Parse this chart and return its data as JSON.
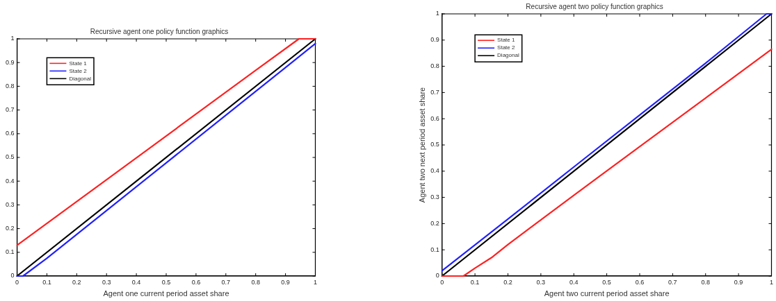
{
  "chart_data": [
    {
      "type": "line",
      "title": "Recursive agent one policy function graphics",
      "xlabel": "Agent one current period asset share",
      "xlim": [
        0,
        1
      ],
      "ylim": [
        0,
        1
      ],
      "xticks": [
        0,
        0.1,
        0.2,
        0.3,
        0.4,
        0.5,
        0.6,
        0.7,
        0.8,
        0.9,
        1
      ],
      "yticks": [
        0,
        0.1,
        0.2,
        0.3,
        0.4,
        0.5,
        0.6,
        0.7,
        0.8,
        0.9,
        1
      ],
      "grid": false,
      "legend": "top left",
      "marker": "none",
      "line_style": "solid",
      "series": [
        {
          "name": "State 1",
          "color": "#ff2020",
          "x": [
            0,
            0.2,
            0.4,
            0.6,
            0.8,
            0.945,
            1
          ],
          "values": [
            0.13,
            0.314,
            0.498,
            0.683,
            0.867,
            1,
            1
          ]
        },
        {
          "name": "State 2",
          "color": "#2020ff",
          "x": [
            0,
            0.02,
            0.1,
            0.3,
            0.5,
            0.7,
            0.9,
            1
          ],
          "values": [
            0,
            0,
            0.075,
            0.276,
            0.477,
            0.678,
            0.879,
            0.98
          ]
        },
        {
          "name": "Diagonal",
          "color": "#000000",
          "x": [
            0,
            1
          ],
          "values": [
            0,
            1
          ]
        }
      ]
    },
    {
      "type": "line",
      "title": "Recursive agent two policy function graphics",
      "xlabel": "Agent two current period asset share",
      "ylabel": "Agent two next period asset share",
      "xlim": [
        0,
        1
      ],
      "ylim": [
        0,
        1
      ],
      "xticks": [
        0,
        0.1,
        0.2,
        0.3,
        0.4,
        0.5,
        0.6,
        0.7,
        0.8,
        0.9,
        1
      ],
      "yticks": [
        0,
        0.1,
        0.2,
        0.3,
        0.4,
        0.5,
        0.6,
        0.7,
        0.8,
        0.9,
        1
      ],
      "grid": false,
      "legend": "top left",
      "marker": "none",
      "line_style": "solid",
      "series": [
        {
          "name": "State 1",
          "color": "#ff2020",
          "x": [
            0,
            0.065,
            0.1,
            0.15,
            0.2,
            0.4,
            0.6,
            0.8,
            1
          ],
          "values": [
            0,
            0,
            0.03,
            0.07,
            0.12,
            0.308,
            0.494,
            0.679,
            0.865
          ]
        },
        {
          "name": "State 2",
          "color": "#2020ff",
          "x": [
            0,
            0.2,
            0.4,
            0.6,
            0.8,
            0.985,
            1
          ],
          "values": [
            0.02,
            0.217,
            0.416,
            0.614,
            0.812,
            1,
            1
          ]
        },
        {
          "name": "Diagonal",
          "color": "#000000",
          "x": [
            0,
            1
          ],
          "values": [
            0,
            1
          ]
        }
      ]
    }
  ]
}
